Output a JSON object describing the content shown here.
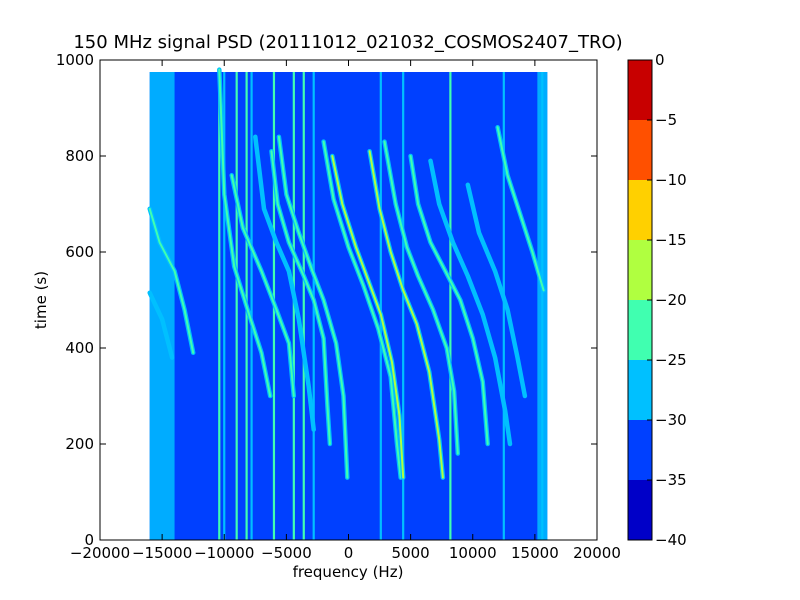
{
  "chart_data": {
    "type": "heatmap",
    "title": "150 MHz signal PSD (20111012_021032_COSMOS2407_TRO)",
    "xlabel": "frequency (Hz)",
    "ylabel": "time (s)",
    "xlim": [
      -20000,
      20000
    ],
    "ylim": [
      0,
      1000
    ],
    "x_ticks": [
      -20000,
      -15000,
      -10000,
      -5000,
      0,
      5000,
      10000,
      15000,
      20000
    ],
    "x_tick_labels": [
      "−20000",
      "−15000",
      "−10000",
      "−5000",
      "0",
      "5000",
      "10000",
      "15000",
      "20000"
    ],
    "y_ticks": [
      0,
      200,
      400,
      600,
      800,
      1000
    ],
    "y_tick_labels": [
      "0",
      "200",
      "400",
      "600",
      "800",
      "1000"
    ],
    "data_extent": {
      "x": [
        -16000,
        16000
      ],
      "y": [
        0,
        975
      ]
    },
    "background_level_db": -33,
    "colorbar": {
      "range": [
        -40,
        0
      ],
      "ticks": [
        0,
        -5,
        -10,
        -15,
        -20,
        -25,
        -30,
        -35,
        -40
      ],
      "tick_labels": [
        "0",
        "−5",
        "−10",
        "−15",
        "−20",
        "−25",
        "−30",
        "−35",
        "−40"
      ],
      "levels": [
        {
          "min": -40,
          "max": -35,
          "color": "#0000c8"
        },
        {
          "min": -35,
          "max": -30,
          "color": "#0040ff"
        },
        {
          "min": -30,
          "max": -25,
          "color": "#00c0ff"
        },
        {
          "min": -25,
          "max": -20,
          "color": "#40ffb0"
        },
        {
          "min": -20,
          "max": -15,
          "color": "#b0ff40"
        },
        {
          "min": -15,
          "max": -10,
          "color": "#ffd000"
        },
        {
          "min": -10,
          "max": -5,
          "color": "#ff5000"
        },
        {
          "min": -5,
          "max": 0,
          "color": "#c80000"
        }
      ]
    },
    "edge_bands": [
      {
        "x0": -16000,
        "x1": -14000,
        "level_db": -28
      },
      {
        "x0": 15200,
        "x1": 16000,
        "level_db": -28
      }
    ],
    "vertical_lines": [
      {
        "x": -10400,
        "y0": 0,
        "y1": 975,
        "level_db": -24
      },
      {
        "x": -10000,
        "y0": 0,
        "y1": 975,
        "level_db": -26
      },
      {
        "x": -9000,
        "y0": 0,
        "y1": 975,
        "level_db": -25
      },
      {
        "x": -8200,
        "y0": 0,
        "y1": 975,
        "level_db": -24
      },
      {
        "x": -7800,
        "y0": 0,
        "y1": 975,
        "level_db": -26
      },
      {
        "x": -6000,
        "y0": 0,
        "y1": 975,
        "level_db": -24
      },
      {
        "x": -4400,
        "y0": 0,
        "y1": 975,
        "level_db": -25
      },
      {
        "x": -3600,
        "y0": 0,
        "y1": 975,
        "level_db": -24
      },
      {
        "x": -2800,
        "y0": 0,
        "y1": 975,
        "level_db": -26
      },
      {
        "x": 2600,
        "y0": 0,
        "y1": 975,
        "level_db": -26
      },
      {
        "x": 4400,
        "y0": 0,
        "y1": 975,
        "level_db": -28
      },
      {
        "x": 8200,
        "y0": 0,
        "y1": 975,
        "level_db": -24
      },
      {
        "x": 12500,
        "y0": 0,
        "y1": 975,
        "level_db": -28
      },
      {
        "x": 15600,
        "y0": 0,
        "y1": 975,
        "level_db": -26
      }
    ],
    "tracks": [
      {
        "name": "",
        "level_db": -25,
        "points": [
          [
            -16000,
            690
          ],
          [
            -15200,
            620
          ],
          [
            -14000,
            560
          ],
          [
            -13200,
            480
          ],
          [
            -12500,
            390
          ]
        ]
      },
      {
        "name": "",
        "level_db": -26,
        "points": [
          [
            -16000,
            515
          ],
          [
            -15000,
            460
          ],
          [
            -14200,
            380
          ]
        ]
      },
      {
        "name": "",
        "level_db": -25,
        "points": [
          [
            -10400,
            980
          ],
          [
            -10000,
            720
          ],
          [
            -9200,
            570
          ],
          [
            -8000,
            470
          ],
          [
            -7000,
            390
          ],
          [
            -6300,
            300
          ]
        ]
      },
      {
        "name": "",
        "level_db": -26,
        "points": [
          [
            -7500,
            840
          ],
          [
            -6800,
            690
          ],
          [
            -5800,
            620
          ],
          [
            -4800,
            560
          ],
          [
            -4000,
            460
          ],
          [
            -3200,
            320
          ],
          [
            -2800,
            230
          ]
        ]
      },
      {
        "name": "",
        "level_db": -25,
        "points": [
          [
            -9400,
            760
          ],
          [
            -8500,
            650
          ],
          [
            -7000,
            560
          ],
          [
            -5800,
            480
          ],
          [
            -4800,
            410
          ],
          [
            -4400,
            300
          ]
        ]
      },
      {
        "name": "",
        "level_db": -22,
        "points": [
          [
            -6200,
            810
          ],
          [
            -5700,
            700
          ],
          [
            -4800,
            620
          ],
          [
            -3600,
            550
          ],
          [
            -2800,
            500
          ],
          [
            -2000,
            420
          ],
          [
            -1700,
            280
          ],
          [
            -1500,
            200
          ]
        ]
      },
      {
        "name": "",
        "level_db": -21,
        "points": [
          [
            -5600,
            840
          ],
          [
            -5000,
            720
          ],
          [
            -4000,
            640
          ],
          [
            -2900,
            560
          ],
          [
            -2000,
            500
          ],
          [
            -1000,
            410
          ],
          [
            -400,
            300
          ],
          [
            -100,
            130
          ]
        ]
      },
      {
        "name": "",
        "level_db": -22,
        "points": [
          [
            -2000,
            830
          ],
          [
            -1200,
            710
          ],
          [
            0,
            610
          ],
          [
            1200,
            530
          ],
          [
            2400,
            440
          ],
          [
            3400,
            340
          ],
          [
            3900,
            200
          ],
          [
            4200,
            130
          ]
        ]
      },
      {
        "name": "",
        "level_db": -18,
        "points": [
          [
            -1300,
            800
          ],
          [
            -500,
            700
          ],
          [
            600,
            610
          ],
          [
            1600,
            540
          ],
          [
            2600,
            470
          ],
          [
            3500,
            370
          ],
          [
            4100,
            260
          ],
          [
            4400,
            130
          ]
        ]
      },
      {
        "name": "",
        "level_db": -18,
        "points": [
          [
            1700,
            810
          ],
          [
            2500,
            690
          ],
          [
            3400,
            600
          ],
          [
            4400,
            520
          ],
          [
            5500,
            450
          ],
          [
            6500,
            350
          ],
          [
            7300,
            210
          ],
          [
            7600,
            130
          ]
        ]
      },
      {
        "name": "",
        "level_db": -21,
        "points": [
          [
            2900,
            830
          ],
          [
            3800,
            700
          ],
          [
            4700,
            610
          ],
          [
            5600,
            550
          ],
          [
            6800,
            480
          ],
          [
            7900,
            400
          ],
          [
            8500,
            310
          ],
          [
            8800,
            180
          ]
        ]
      },
      {
        "name": "",
        "level_db": -24,
        "points": [
          [
            5000,
            800
          ],
          [
            5600,
            700
          ],
          [
            6600,
            620
          ],
          [
            7800,
            560
          ],
          [
            9000,
            500
          ],
          [
            10000,
            420
          ],
          [
            10800,
            330
          ],
          [
            11200,
            200
          ]
        ]
      },
      {
        "name": "",
        "level_db": -26,
        "points": [
          [
            6600,
            790
          ],
          [
            7300,
            700
          ],
          [
            8400,
            620
          ],
          [
            9600,
            550
          ],
          [
            10800,
            470
          ],
          [
            11800,
            380
          ],
          [
            12600,
            270
          ],
          [
            13000,
            200
          ]
        ]
      },
      {
        "name": "",
        "level_db": -24,
        "points": [
          [
            12000,
            860
          ],
          [
            12800,
            760
          ],
          [
            13800,
            680
          ],
          [
            14800,
            600
          ],
          [
            15700,
            520
          ]
        ]
      },
      {
        "name": "",
        "level_db": -27,
        "points": [
          [
            9600,
            740
          ],
          [
            10500,
            640
          ],
          [
            11800,
            560
          ],
          [
            12800,
            480
          ],
          [
            13600,
            380
          ],
          [
            14200,
            300
          ]
        ]
      }
    ],
    "grid": false,
    "legend": "colorbar-right"
  }
}
